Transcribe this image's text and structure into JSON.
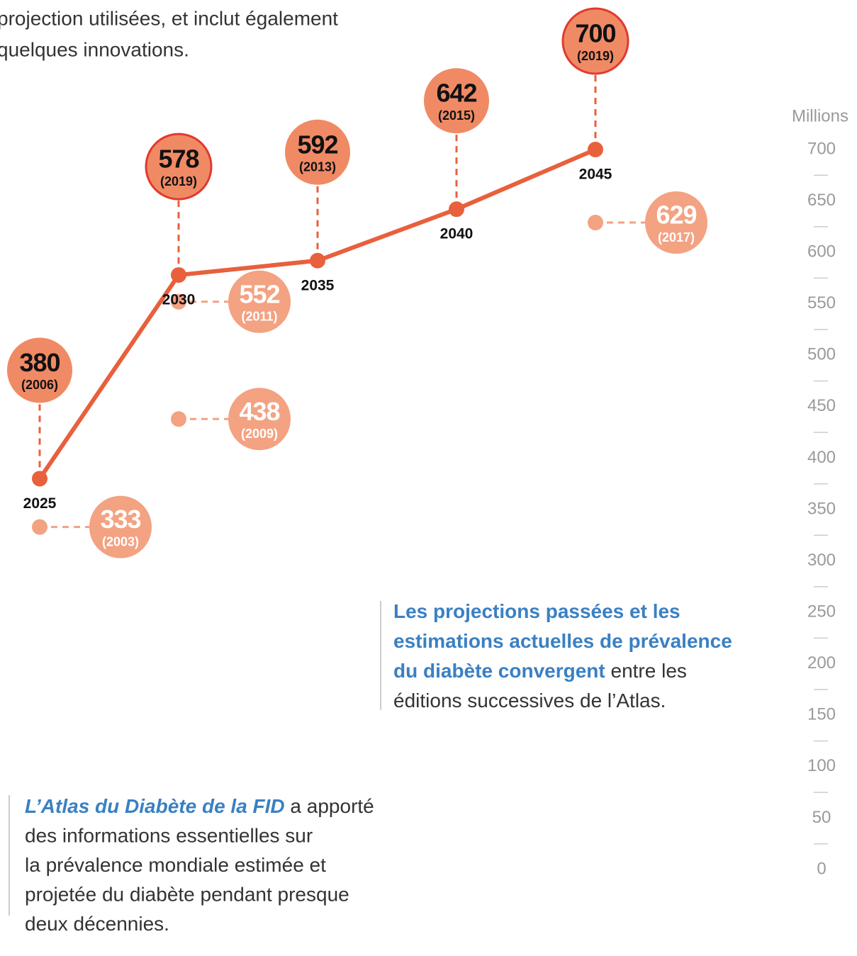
{
  "intro_lines": [
    "projection utilisées, et inclut également",
    "quelques innovations."
  ],
  "chart_data": {
    "type": "line",
    "y_label": "Millions",
    "ylim": [
      0,
      700
    ],
    "yticks": [
      0,
      50,
      100,
      150,
      200,
      250,
      300,
      350,
      400,
      450,
      500,
      550,
      600,
      650,
      700
    ],
    "minor_yticks": [
      25,
      75,
      125,
      175,
      225,
      275,
      325,
      375,
      425,
      475,
      525,
      575,
      625,
      675
    ],
    "categories": [
      "2025",
      "2030",
      "2035",
      "2040",
      "2045"
    ],
    "values": [
      380,
      578,
      592,
      642,
      700
    ],
    "editions": [
      "(2006)",
      "(2019)",
      "(2013)",
      "(2015)",
      "(2019)"
    ],
    "outlined": [
      false,
      true,
      false,
      false,
      true
    ],
    "color": "#e8603c",
    "circle_color": "#f08a65",
    "outline_color": "#e2392f",
    "past_projections": {
      "color": "#f3a282",
      "points": [
        {
          "x": "2025",
          "value": 333,
          "edition": "(2003)"
        },
        {
          "x": "2030",
          "value": 552,
          "edition": "(2011)"
        },
        {
          "x": "2030",
          "value": 438,
          "edition": "(2009)"
        },
        {
          "x": "2045",
          "value": 629,
          "edition": "(2017)"
        }
      ]
    }
  },
  "callout": {
    "lines": [
      [
        {
          "text": "Les projections passées et les",
          "emphasis": true
        }
      ],
      [
        {
          "text": "estimations actuelles de prévalence",
          "emphasis": true
        }
      ],
      [
        {
          "text": "du diabète convergent",
          "emphasis": true
        },
        {
          "text": " entre les",
          "emphasis": false
        }
      ],
      [
        {
          "text": "éditions successives de l’Atlas.",
          "emphasis": false
        }
      ]
    ]
  },
  "note": {
    "lines": [
      [
        {
          "text": "L’Atlas du Diabète de la FID",
          "emphasis": true
        },
        {
          "text": " a apporté",
          "emphasis": false
        }
      ],
      [
        {
          "text": "des informations essentielles sur",
          "emphasis": false
        }
      ],
      [
        {
          "text": "la prévalence mondiale estimée et",
          "emphasis": false
        }
      ],
      [
        {
          "text": "projetée du diabète pendant presque",
          "emphasis": false
        }
      ],
      [
        {
          "text": "deux décennies.",
          "emphasis": false
        }
      ]
    ]
  }
}
